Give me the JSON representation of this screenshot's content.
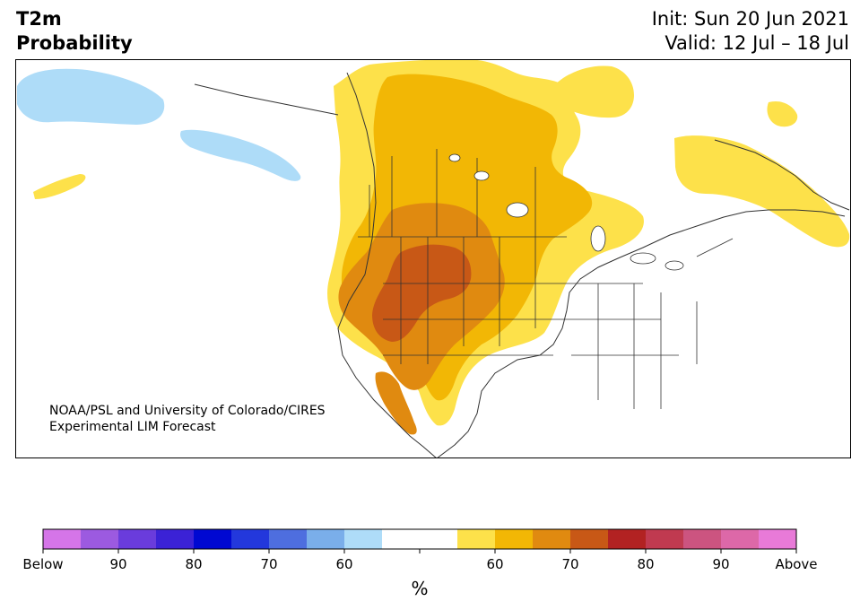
{
  "header": {
    "variable": "T2m",
    "product": "Probability",
    "init": "Init: Sun 20 Jun 2021",
    "valid": "Valid: 12 Jul – 18 Jul"
  },
  "credit": {
    "line1": "NOAA/PSL and University of Colorado/CIRES",
    "line2": "Experimental LIM Forecast"
  },
  "map": {
    "region": "North America",
    "land_color": "#ffffff",
    "border_color": "#333333"
  },
  "colorbar": {
    "unit": "%",
    "colors": [
      "#d575e8",
      "#9c5ae0",
      "#6a3cdc",
      "#3b22d6",
      "#0008d2",
      "#2338dc",
      "#4e6edf",
      "#7aaeea",
      "#aedcf8",
      "#ffffff",
      "#ffffff",
      "#fde14a",
      "#f2b705",
      "#e08a10",
      "#c85816",
      "#b22222",
      "#c03a50",
      "#cc5480",
      "#dd68a8",
      "#e87ad8"
    ],
    "labels": [
      "Below",
      "90",
      "80",
      "70",
      "60",
      "",
      "60",
      "70",
      "80",
      "90",
      "Above"
    ]
  }
}
